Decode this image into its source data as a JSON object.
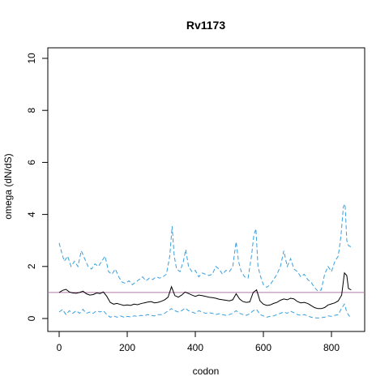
{
  "chart_data": {
    "type": "line",
    "title": "Rv1173",
    "xlabel": "codon",
    "ylabel": "omega (dN/dS)",
    "xlim": [
      0,
      860
    ],
    "ylim": [
      0,
      10
    ],
    "x_ticks": [
      0,
      200,
      400,
      600,
      800
    ],
    "y_ticks": [
      0,
      2,
      4,
      6,
      8,
      10
    ],
    "grid": false,
    "reference_line": {
      "y": 1.0,
      "color": "#b07aa8"
    },
    "series": [
      {
        "role": "estimate",
        "color": "#000000",
        "dash": "solid",
        "points": [
          [
            0,
            1.0
          ],
          [
            10,
            1.08
          ],
          [
            20,
            1.12
          ],
          [
            30,
            1.02
          ],
          [
            40,
            0.98
          ],
          [
            50,
            0.97
          ],
          [
            60,
            1.0
          ],
          [
            70,
            1.05
          ],
          [
            80,
            0.95
          ],
          [
            90,
            0.9
          ],
          [
            100,
            0.92
          ],
          [
            110,
            0.98
          ],
          [
            120,
            0.96
          ],
          [
            130,
            1.02
          ],
          [
            140,
            0.85
          ],
          [
            150,
            0.62
          ],
          [
            160,
            0.55
          ],
          [
            170,
            0.58
          ],
          [
            180,
            0.54
          ],
          [
            190,
            0.5
          ],
          [
            200,
            0.52
          ],
          [
            210,
            0.5
          ],
          [
            220,
            0.55
          ],
          [
            230,
            0.53
          ],
          [
            240,
            0.57
          ],
          [
            250,
            0.6
          ],
          [
            260,
            0.63
          ],
          [
            270,
            0.65
          ],
          [
            280,
            0.6
          ],
          [
            290,
            0.62
          ],
          [
            300,
            0.66
          ],
          [
            310,
            0.72
          ],
          [
            320,
            0.82
          ],
          [
            330,
            1.22
          ],
          [
            340,
            0.88
          ],
          [
            350,
            0.82
          ],
          [
            360,
            0.9
          ],
          [
            370,
            1.02
          ],
          [
            380,
            0.96
          ],
          [
            390,
            0.9
          ],
          [
            400,
            0.85
          ],
          [
            410,
            0.9
          ],
          [
            420,
            0.88
          ],
          [
            430,
            0.85
          ],
          [
            440,
            0.82
          ],
          [
            450,
            0.8
          ],
          [
            460,
            0.78
          ],
          [
            470,
            0.74
          ],
          [
            480,
            0.72
          ],
          [
            490,
            0.7
          ],
          [
            500,
            0.68
          ],
          [
            510,
            0.72
          ],
          [
            520,
            0.95
          ],
          [
            530,
            0.75
          ],
          [
            540,
            0.65
          ],
          [
            550,
            0.62
          ],
          [
            560,
            0.64
          ],
          [
            570,
            1.0
          ],
          [
            580,
            1.1
          ],
          [
            590,
            0.68
          ],
          [
            600,
            0.55
          ],
          [
            610,
            0.5
          ],
          [
            620,
            0.52
          ],
          [
            630,
            0.58
          ],
          [
            640,
            0.62
          ],
          [
            650,
            0.7
          ],
          [
            660,
            0.75
          ],
          [
            670,
            0.72
          ],
          [
            680,
            0.78
          ],
          [
            690,
            0.75
          ],
          [
            700,
            0.65
          ],
          [
            710,
            0.6
          ],
          [
            720,
            0.62
          ],
          [
            730,
            0.58
          ],
          [
            740,
            0.5
          ],
          [
            750,
            0.42
          ],
          [
            760,
            0.38
          ],
          [
            770,
            0.38
          ],
          [
            780,
            0.42
          ],
          [
            790,
            0.52
          ],
          [
            800,
            0.56
          ],
          [
            810,
            0.6
          ],
          [
            820,
            0.68
          ],
          [
            830,
            0.9
          ],
          [
            838,
            1.75
          ],
          [
            845,
            1.65
          ],
          [
            850,
            1.15
          ],
          [
            858,
            1.1
          ]
        ]
      },
      {
        "role": "upper bound",
        "color": "#3a9fdc",
        "dash": "dashed",
        "points": [
          [
            0,
            2.9
          ],
          [
            8,
            2.5
          ],
          [
            15,
            2.2
          ],
          [
            25,
            2.4
          ],
          [
            35,
            2.0
          ],
          [
            45,
            2.2
          ],
          [
            55,
            2.0
          ],
          [
            65,
            2.6
          ],
          [
            75,
            2.3
          ],
          [
            85,
            2.0
          ],
          [
            95,
            1.9
          ],
          [
            105,
            2.1
          ],
          [
            115,
            2.0
          ],
          [
            125,
            2.2
          ],
          [
            135,
            2.4
          ],
          [
            145,
            1.8
          ],
          [
            155,
            1.7
          ],
          [
            165,
            1.9
          ],
          [
            175,
            1.6
          ],
          [
            185,
            1.4
          ],
          [
            195,
            1.35
          ],
          [
            205,
            1.45
          ],
          [
            215,
            1.3
          ],
          [
            225,
            1.4
          ],
          [
            235,
            1.5
          ],
          [
            245,
            1.6
          ],
          [
            255,
            1.45
          ],
          [
            265,
            1.55
          ],
          [
            275,
            1.5
          ],
          [
            285,
            1.6
          ],
          [
            295,
            1.55
          ],
          [
            305,
            1.6
          ],
          [
            315,
            1.7
          ],
          [
            325,
            2.4
          ],
          [
            332,
            3.55
          ],
          [
            338,
            2.4
          ],
          [
            345,
            1.9
          ],
          [
            355,
            1.8
          ],
          [
            365,
            2.2
          ],
          [
            372,
            2.65
          ],
          [
            380,
            2.0
          ],
          [
            390,
            1.8
          ],
          [
            400,
            1.85
          ],
          [
            410,
            1.6
          ],
          [
            420,
            1.75
          ],
          [
            430,
            1.7
          ],
          [
            440,
            1.65
          ],
          [
            450,
            1.7
          ],
          [
            460,
            2.0
          ],
          [
            470,
            1.9
          ],
          [
            480,
            1.7
          ],
          [
            490,
            1.85
          ],
          [
            500,
            1.8
          ],
          [
            510,
            2.0
          ],
          [
            520,
            2.95
          ],
          [
            527,
            2.2
          ],
          [
            535,
            1.8
          ],
          [
            545,
            1.6
          ],
          [
            555,
            1.55
          ],
          [
            565,
            2.4
          ],
          [
            572,
            3.2
          ],
          [
            578,
            3.45
          ],
          [
            584,
            2.0
          ],
          [
            592,
            1.6
          ],
          [
            600,
            1.3
          ],
          [
            610,
            1.2
          ],
          [
            620,
            1.3
          ],
          [
            630,
            1.5
          ],
          [
            640,
            1.7
          ],
          [
            650,
            2.0
          ],
          [
            660,
            2.6
          ],
          [
            670,
            2.0
          ],
          [
            680,
            2.3
          ],
          [
            690,
            1.9
          ],
          [
            700,
            1.8
          ],
          [
            710,
            1.6
          ],
          [
            720,
            1.7
          ],
          [
            730,
            1.5
          ],
          [
            740,
            1.4
          ],
          [
            750,
            1.2
          ],
          [
            760,
            1.05
          ],
          [
            770,
            1.1
          ],
          [
            780,
            1.7
          ],
          [
            790,
            2.0
          ],
          [
            800,
            1.8
          ],
          [
            810,
            2.2
          ],
          [
            820,
            2.4
          ],
          [
            828,
            3.2
          ],
          [
            835,
            4.3
          ],
          [
            840,
            4.4
          ],
          [
            845,
            3.0
          ],
          [
            850,
            2.8
          ],
          [
            858,
            2.75
          ]
        ]
      },
      {
        "role": "lower bound",
        "color": "#3a9fdc",
        "dash": "dashed",
        "points": [
          [
            0,
            0.25
          ],
          [
            10,
            0.35
          ],
          [
            20,
            0.15
          ],
          [
            30,
            0.3
          ],
          [
            40,
            0.2
          ],
          [
            50,
            0.3
          ],
          [
            60,
            0.2
          ],
          [
            70,
            0.35
          ],
          [
            80,
            0.2
          ],
          [
            90,
            0.25
          ],
          [
            100,
            0.2
          ],
          [
            110,
            0.3
          ],
          [
            120,
            0.25
          ],
          [
            130,
            0.3
          ],
          [
            140,
            0.15
          ],
          [
            150,
            0.05
          ],
          [
            160,
            0.1
          ],
          [
            170,
            0.05
          ],
          [
            180,
            0.1
          ],
          [
            190,
            0.05
          ],
          [
            200,
            0.08
          ],
          [
            210,
            0.06
          ],
          [
            220,
            0.1
          ],
          [
            230,
            0.08
          ],
          [
            240,
            0.12
          ],
          [
            250,
            0.1
          ],
          [
            260,
            0.15
          ],
          [
            270,
            0.12
          ],
          [
            280,
            0.1
          ],
          [
            290,
            0.15
          ],
          [
            300,
            0.15
          ],
          [
            310,
            0.2
          ],
          [
            320,
            0.3
          ],
          [
            330,
            0.38
          ],
          [
            340,
            0.3
          ],
          [
            350,
            0.25
          ],
          [
            360,
            0.3
          ],
          [
            370,
            0.4
          ],
          [
            380,
            0.3
          ],
          [
            390,
            0.25
          ],
          [
            400,
            0.2
          ],
          [
            410,
            0.3
          ],
          [
            420,
            0.25
          ],
          [
            430,
            0.2
          ],
          [
            440,
            0.22
          ],
          [
            450,
            0.2
          ],
          [
            460,
            0.15
          ],
          [
            470,
            0.18
          ],
          [
            480,
            0.15
          ],
          [
            490,
            0.12
          ],
          [
            500,
            0.15
          ],
          [
            510,
            0.2
          ],
          [
            520,
            0.3
          ],
          [
            530,
            0.2
          ],
          [
            540,
            0.15
          ],
          [
            550,
            0.12
          ],
          [
            560,
            0.18
          ],
          [
            570,
            0.3
          ],
          [
            580,
            0.35
          ],
          [
            590,
            0.15
          ],
          [
            600,
            0.1
          ],
          [
            610,
            0.05
          ],
          [
            620,
            0.08
          ],
          [
            630,
            0.1
          ],
          [
            640,
            0.15
          ],
          [
            650,
            0.2
          ],
          [
            660,
            0.25
          ],
          [
            670,
            0.2
          ],
          [
            680,
            0.28
          ],
          [
            690,
            0.22
          ],
          [
            700,
            0.15
          ],
          [
            710,
            0.12
          ],
          [
            720,
            0.15
          ],
          [
            730,
            0.1
          ],
          [
            740,
            0.05
          ],
          [
            750,
            0.03
          ],
          [
            760,
            0.02
          ],
          [
            770,
            0.03
          ],
          [
            780,
            0.05
          ],
          [
            790,
            0.1
          ],
          [
            800,
            0.08
          ],
          [
            810,
            0.12
          ],
          [
            820,
            0.15
          ],
          [
            830,
            0.4
          ],
          [
            838,
            0.55
          ],
          [
            845,
            0.25
          ],
          [
            852,
            0.1
          ],
          [
            858,
            0.05
          ]
        ]
      }
    ]
  }
}
